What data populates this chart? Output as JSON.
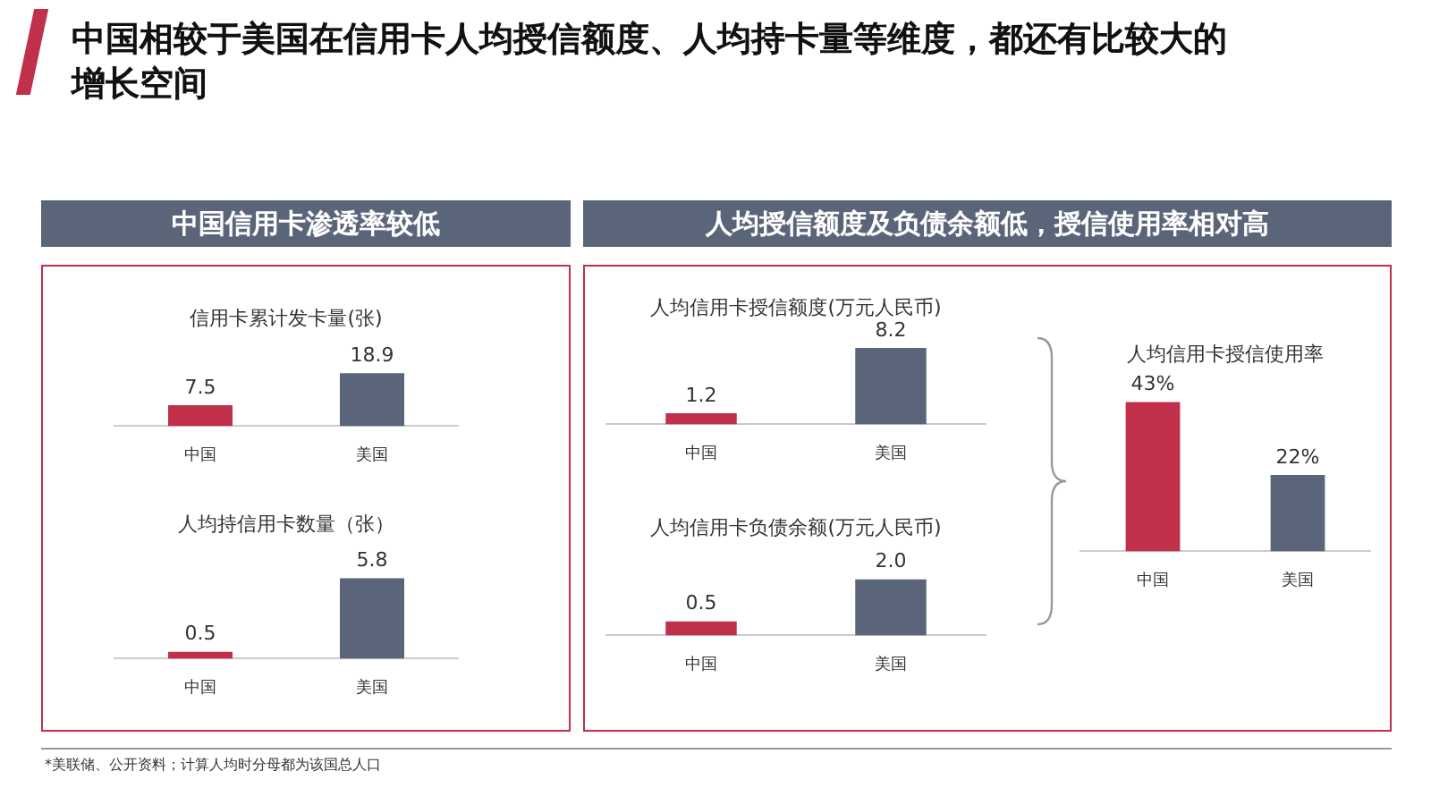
{
  "chart_data": [
    {
      "type": "bar",
      "title": "信用卡累计发卡量(张)",
      "categories": [
        "中国",
        "美国"
      ],
      "values": [
        7.5,
        18.9
      ],
      "colors": [
        "#c0304a",
        "#5b6579"
      ],
      "value_labels": [
        "7.5",
        "18.9"
      ]
    },
    {
      "type": "bar",
      "title": "人均持信用卡数量（张）",
      "categories": [
        "中国",
        "美国"
      ],
      "values": [
        0.5,
        5.8
      ],
      "colors": [
        "#c0304a",
        "#5b6579"
      ],
      "value_labels": [
        "0.5",
        "5.8"
      ]
    },
    {
      "type": "bar",
      "title": "人均信用卡授信额度(万元人民币)",
      "categories": [
        "中国",
        "美国"
      ],
      "values": [
        1.2,
        8.2
      ],
      "colors": [
        "#c0304a",
        "#5b6579"
      ],
      "value_labels": [
        "1.2",
        "8.2"
      ]
    },
    {
      "type": "bar",
      "title": "人均信用卡负债余额(万元人民币)",
      "categories": [
        "中国",
        "美国"
      ],
      "values": [
        0.5,
        2.0
      ],
      "colors": [
        "#c0304a",
        "#5b6579"
      ],
      "value_labels": [
        "0.5",
        "2.0"
      ]
    },
    {
      "type": "bar",
      "title": "人均信用卡授信使用率",
      "categories": [
        "中国",
        "美国"
      ],
      "values": [
        43,
        22
      ],
      "colors": [
        "#c0304a",
        "#5b6579"
      ],
      "value_labels": [
        "43%",
        "22%"
      ]
    },
    {
      "type": "other",
      "title": "中国相较于美国在信用卡人均授信额度、人均持卡量等维度，都还有比较大的增长空间",
      "annotations": [
        "中国信用卡渗透率较低",
        "人均授信额度及负债余额低，授信使用率相对高",
        "*美联储、公开资料；计算人均时分母都为该国总人口"
      ]
    }
  ]
}
